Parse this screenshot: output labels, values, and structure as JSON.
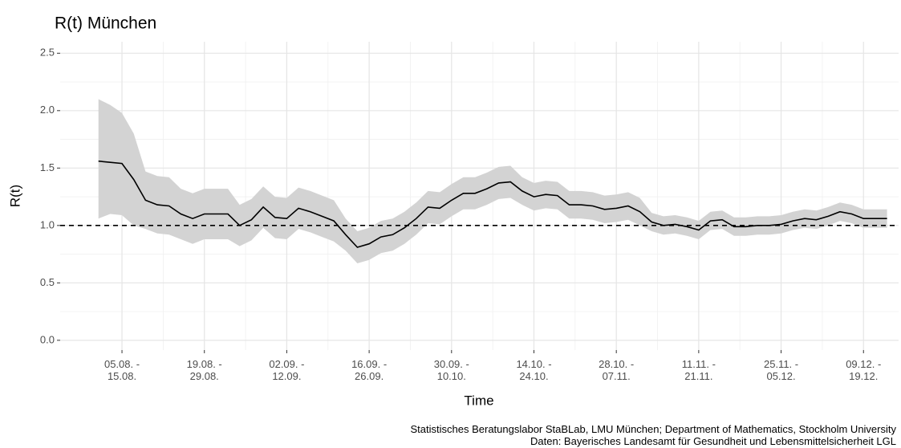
{
  "chart_data": {
    "type": "line",
    "title": "R(t) München",
    "x_label": "Time",
    "y_label": "R(t)",
    "caption": [
      "Statistisches Beratungslabor StaBLab, LMU München; Department of Mathematics, Stockholm University",
      "Daten: Bayerisches Landesamt für Gesundheit und Lebensmittelsicherheit LGL"
    ],
    "categories": [
      null,
      null,
      "05.08. -\n15.08.",
      null,
      null,
      null,
      null,
      null,
      null,
      "19.08. -\n29.08.",
      null,
      null,
      null,
      null,
      null,
      null,
      "02.09. -\n12.09.",
      null,
      null,
      null,
      null,
      null,
      null,
      "16.09. -\n26.09.",
      null,
      null,
      null,
      null,
      null,
      null,
      "30.09. -\n10.10.",
      null,
      null,
      null,
      null,
      null,
      null,
      "14.10. -\n24.10.",
      null,
      null,
      null,
      null,
      null,
      null,
      "28.10. -\n07.11.",
      null,
      null,
      null,
      null,
      null,
      null,
      "11.11. -\n21.11.",
      null,
      null,
      null,
      null,
      null,
      null,
      "25.11. -\n05.12.",
      null,
      null,
      null,
      null,
      null,
      null,
      "09.12. -\n19.12.",
      null,
      null
    ],
    "series": [
      {
        "color": "#000000",
        "values": [
          1.56,
          1.55,
          1.54,
          1.4,
          1.22,
          1.18,
          1.17,
          1.1,
          1.06,
          1.1,
          1.1,
          1.1,
          1.0,
          1.05,
          1.16,
          1.07,
          1.06,
          1.15,
          1.12,
          1.08,
          1.04,
          0.92,
          0.81,
          0.84,
          0.9,
          0.92,
          0.98,
          1.06,
          1.16,
          1.15,
          1.22,
          1.28,
          1.28,
          1.32,
          1.37,
          1.38,
          1.3,
          1.25,
          1.27,
          1.26,
          1.18,
          1.18,
          1.17,
          1.14,
          1.15,
          1.17,
          1.12,
          1.03,
          1.0,
          1.01,
          0.99,
          0.96,
          1.04,
          1.05,
          0.99,
          0.99,
          1.0,
          1.0,
          1.01,
          1.04,
          1.06,
          1.05,
          1.08,
          1.12,
          1.1,
          1.06,
          1.06,
          1.06
        ]
      }
    ],
    "band": {
      "color": "#d3d3d3",
      "upper": [
        2.1,
        2.05,
        1.98,
        1.8,
        1.47,
        1.43,
        1.42,
        1.32,
        1.28,
        1.32,
        1.32,
        1.32,
        1.18,
        1.23,
        1.34,
        1.25,
        1.24,
        1.33,
        1.3,
        1.26,
        1.22,
        1.06,
        0.95,
        0.98,
        1.04,
        1.06,
        1.12,
        1.2,
        1.3,
        1.29,
        1.36,
        1.42,
        1.42,
        1.46,
        1.51,
        1.52,
        1.42,
        1.37,
        1.39,
        1.38,
        1.3,
        1.3,
        1.29,
        1.26,
        1.27,
        1.29,
        1.24,
        1.11,
        1.08,
        1.09,
        1.07,
        1.04,
        1.12,
        1.13,
        1.07,
        1.07,
        1.08,
        1.08,
        1.09,
        1.12,
        1.14,
        1.13,
        1.16,
        1.2,
        1.18,
        1.14,
        1.14,
        1.14
      ],
      "lower": [
        1.06,
        1.1,
        1.09,
        1.0,
        0.97,
        0.93,
        0.92,
        0.88,
        0.84,
        0.88,
        0.88,
        0.88,
        0.82,
        0.87,
        0.98,
        0.89,
        0.88,
        0.97,
        0.94,
        0.9,
        0.86,
        0.78,
        0.67,
        0.7,
        0.76,
        0.78,
        0.84,
        0.92,
        1.02,
        1.01,
        1.08,
        1.14,
        1.14,
        1.18,
        1.23,
        1.24,
        1.18,
        1.13,
        1.15,
        1.14,
        1.06,
        1.06,
        1.05,
        1.02,
        1.03,
        1.05,
        1.0,
        0.95,
        0.92,
        0.93,
        0.91,
        0.88,
        0.96,
        0.97,
        0.91,
        0.91,
        0.92,
        0.92,
        0.93,
        0.96,
        0.98,
        0.97,
        1.0,
        1.04,
        1.02,
        0.98,
        0.98,
        0.98
      ]
    },
    "hline": 1,
    "ylim": [
      -0.085,
      2.6
    ],
    "yticks": [
      {
        "value": 0,
        "label": "0.0"
      },
      0.5,
      {
        "value": 1,
        "label": "1.0"
      },
      1.5,
      {
        "value": 2,
        "label": "2.0"
      },
      2.5
    ],
    "grid": true
  }
}
